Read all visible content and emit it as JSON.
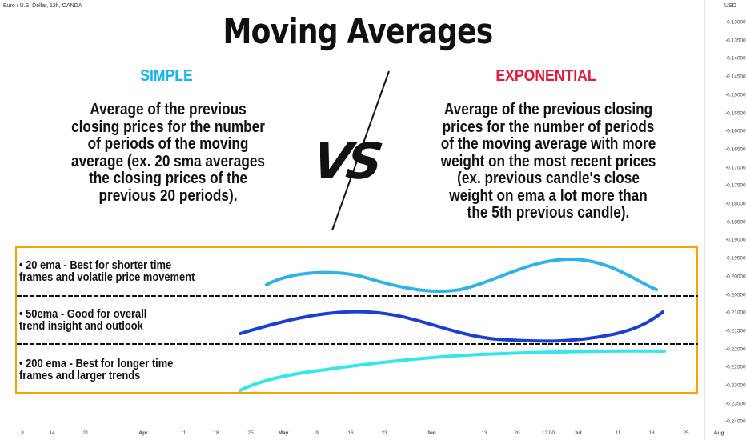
{
  "chart_header": {
    "symbol": "Euro / U.S. Dollar, 12h, OANDA",
    "currency": "USD"
  },
  "price_axis": [
    "-0.13000",
    "-0.13500",
    "-0.14000",
    "-0.14500",
    "-0.15000",
    "-0.15500",
    "-0.16000",
    "-0.16500",
    "-0.17000",
    "-0.17500",
    "-0.18000",
    "-0.18500",
    "-0.19000",
    "-0.19500",
    "-0.20000",
    "-0.20500",
    "-0.21000",
    "-0.21500",
    "-0.22000",
    "-0.22500",
    "-0.23000",
    "-0.23500",
    "-0.24000"
  ],
  "time_axis": [
    {
      "label": "8",
      "bold": false
    },
    {
      "label": "14",
      "bold": false
    },
    {
      "label": "21",
      "bold": false
    },
    {
      "label": "Apr",
      "bold": true
    },
    {
      "label": "11",
      "bold": false
    },
    {
      "label": "18",
      "bold": false
    },
    {
      "label": "25",
      "bold": false
    },
    {
      "label": "May",
      "bold": true
    },
    {
      "label": "9",
      "bold": false
    },
    {
      "label": "16",
      "bold": false
    },
    {
      "label": "23",
      "bold": false
    },
    {
      "label": "Jun",
      "bold": true
    },
    {
      "label": "13",
      "bold": false
    },
    {
      "label": "20",
      "bold": false
    },
    {
      "label": "12:00",
      "bold": false
    },
    {
      "label": "Jul",
      "bold": true
    },
    {
      "label": "11",
      "bold": false
    },
    {
      "label": "18",
      "bold": false
    },
    {
      "label": "25",
      "bold": false
    },
    {
      "label": "Aug",
      "bold": true
    }
  ],
  "title": "Moving Averages",
  "simple": {
    "heading": "SIMPLE",
    "description": "Average of the previous closing prices for the number of periods of the moving average (ex. 20 sma averages the closing prices of the previous 20 periods)."
  },
  "exponential": {
    "heading": "EXPONENTIAL",
    "description": "Average of the previous closing prices for the number of periods of the moving average with more weight on the most recent prices (ex. previous candle's close weight on ema a lot more than the 5th previous candle)."
  },
  "vs_mark": "VS",
  "ema_rows": [
    {
      "line1": "• 20 ema - Best for shorter time",
      "line2": "frames and volatile price movement",
      "color": "#2bb3ea"
    },
    {
      "line1": "• 50ema - Good for overall",
      "line2": "trend insight and outlook",
      "color": "#1a3fd1"
    },
    {
      "line1": "• 200 ema - Best for longer time",
      "line2": "frames and larger trends",
      "color": "#33e6ea"
    }
  ],
  "colors": {
    "simple": "#12b6e8",
    "exponential": "#e41a3b",
    "panel_border": "#f7a300"
  }
}
